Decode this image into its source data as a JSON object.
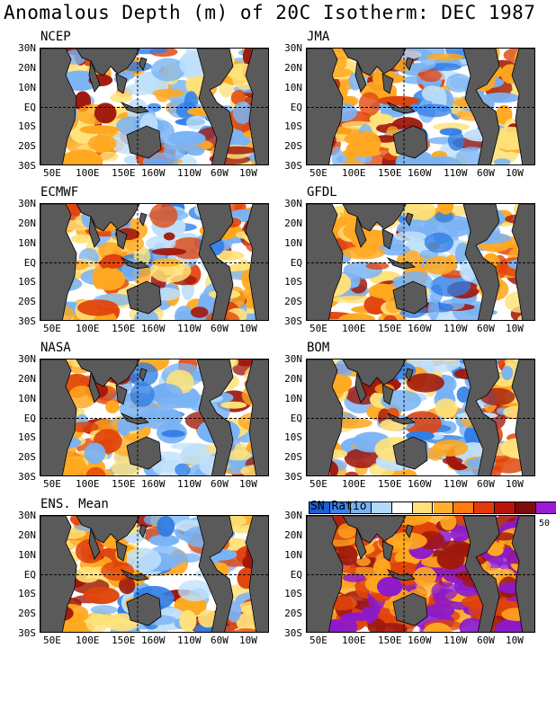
{
  "title": "Anomalous Depth (m) of 20C Isotherm: DEC 1987",
  "lat_labels": [
    "30N",
    "20N",
    "10N",
    "EQ",
    "10S",
    "20S",
    "30S"
  ],
  "lon_labels": [
    "50E",
    "100E",
    "150E",
    "160W",
    "110W",
    "60W",
    "10W"
  ],
  "panels": [
    {
      "name": "NCEP"
    },
    {
      "name": "JMA"
    },
    {
      "name": "ECMWF"
    },
    {
      "name": "GFDL"
    },
    {
      "name": "NASA"
    },
    {
      "name": "BOM"
    },
    {
      "name": "ENS. Mean"
    },
    {
      "name": "SN Ratio"
    }
  ],
  "colorbar": {
    "label": "SN Ratio",
    "tick": "50",
    "colors": [
      "#1a5fd6",
      "#3c82ea",
      "#7ab3f5",
      "#b2d8fb",
      "#ffffff",
      "#ffe27a",
      "#ffb02e",
      "#ff7a10",
      "#e63a0a",
      "#b8140c",
      "#7e0a0a",
      "#9b1ad6"
    ]
  },
  "colors": {
    "land": "#5a5a5a",
    "coast": "#000000",
    "neg_strong": "#2f7de6",
    "neg_mid": "#7ab3f5",
    "neg_weak": "#bfe0fb",
    "pos_weak": "#ffe27a",
    "pos_mid": "#ffa820",
    "pos_strong": "#e0440c",
    "pos_max": "#a0180c",
    "purple": "#8c1acb"
  }
}
